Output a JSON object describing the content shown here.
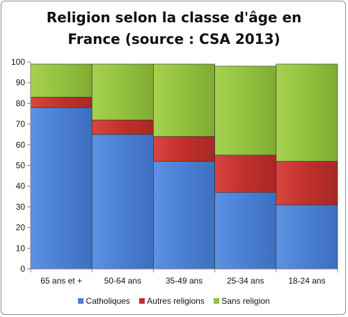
{
  "chart_data": {
    "type": "bar",
    "stacked": true,
    "title_lines": [
      "Religion selon la classe d'âge en",
      "France (source : CSA 2013)"
    ],
    "categories": [
      "65 ans et +",
      "50-64 ans",
      "35-49 ans",
      "25-34 ans",
      "18-24 ans"
    ],
    "series": [
      {
        "name": "Catholiques",
        "color": "#4a7fd3",
        "values": [
          78,
          65,
          52,
          37,
          31
        ]
      },
      {
        "name": "Autres religions",
        "color": "#c0302b",
        "values": [
          5,
          7,
          12,
          18,
          21
        ]
      },
      {
        "name": "Sans religion",
        "color": "#92c13e",
        "values": [
          16,
          27,
          35,
          43,
          47
        ]
      }
    ],
    "ylim": [
      0,
      100
    ],
    "yticks": [
      0,
      10,
      20,
      30,
      40,
      50,
      60,
      70,
      80,
      90,
      100
    ],
    "grid": false,
    "legend_position": "bottom"
  }
}
